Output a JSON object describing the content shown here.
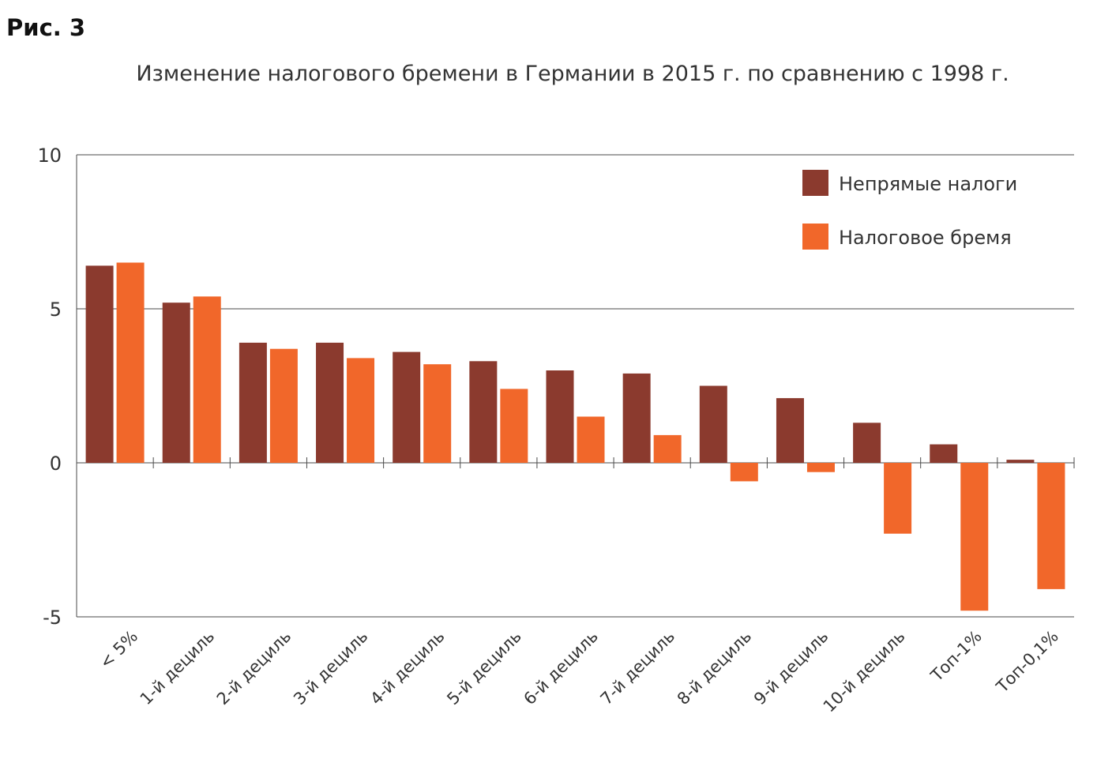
{
  "figure_label": "Рис. 3",
  "chart_data": {
    "type": "bar",
    "title": "Изменение налогового бремени в Германии в 2015 г. по сравнению с 1998 г.",
    "xlabel": "",
    "ylabel": "",
    "ylim": [
      -5,
      10
    ],
    "yticks": [
      10,
      5,
      0,
      -5
    ],
    "grid": true,
    "legend_position": "top-right",
    "categories": [
      "< 5%",
      "1-й дециль",
      "2-й дециль",
      "3-й дециль",
      "4-й дециль",
      "5-й дециль",
      "6-й дециль",
      "7-й дециль",
      "8-й дециль",
      "9-й дециль",
      "10-й дециль",
      "Топ-1%",
      "Топ-0,1%"
    ],
    "series": [
      {
        "name": "Непрямые налоги",
        "color": "#8b3a2e",
        "values": [
          6.4,
          5.2,
          3.9,
          3.9,
          3.6,
          3.3,
          3.0,
          2.9,
          2.5,
          2.1,
          1.3,
          0.6,
          0.1
        ]
      },
      {
        "name": "Налоговое бремя",
        "color": "#f1672a",
        "values": [
          6.5,
          5.4,
          3.7,
          3.4,
          3.2,
          2.4,
          1.5,
          0.9,
          -0.6,
          -0.3,
          -2.3,
          -4.8,
          -4.1
        ]
      }
    ]
  }
}
